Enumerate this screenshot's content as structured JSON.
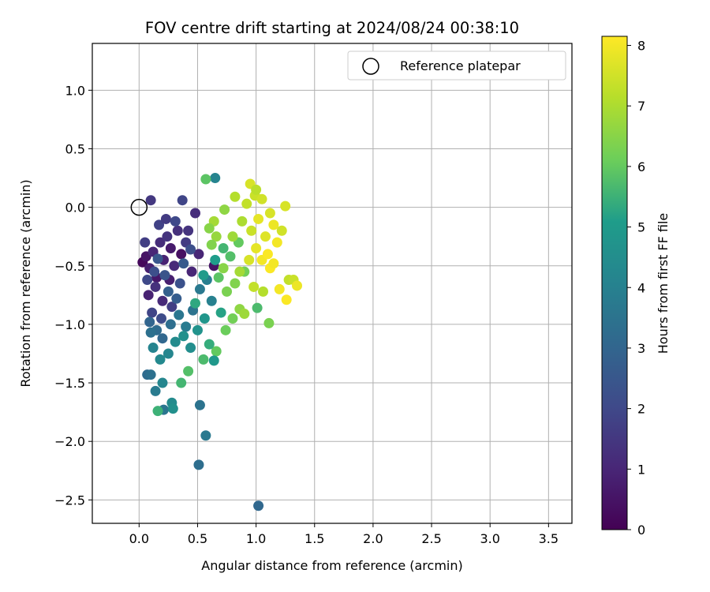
{
  "chart_data": {
    "type": "scatter",
    "title": "FOV centre drift starting at 2024/08/24 00:38:10",
    "xlabel": "Angular distance from reference (arcmin)",
    "ylabel": "Rotation from reference (arcmin)",
    "xlim": [
      -0.4,
      3.7
    ],
    "ylim": [
      -2.7,
      1.4
    ],
    "x_ticks": [
      0.0,
      0.5,
      1.0,
      1.5,
      2.0,
      2.5,
      3.0,
      3.5
    ],
    "x_tick_labels": [
      "0.0",
      "0.5",
      "1.0",
      "1.5",
      "2.0",
      "2.5",
      "3.0",
      "3.5"
    ],
    "y_ticks": [
      1.0,
      0.5,
      0.0,
      -0.5,
      -1.0,
      -1.5,
      -2.0,
      -2.5
    ],
    "y_tick_labels": [
      "1.0",
      "0.5",
      "0.0",
      "−0.5",
      "−1.0",
      "−1.5",
      "−2.0",
      "−2.5"
    ],
    "grid": true,
    "legend": {
      "position": "top-right",
      "entries": [
        "Reference platepar"
      ]
    },
    "reference_point": {
      "x": 0.0,
      "y": 0.0
    },
    "colorbar": {
      "label": "Hours from first FF file",
      "range": [
        0,
        8.15
      ],
      "ticks": [
        0,
        1,
        2,
        3,
        4,
        5,
        6,
        7,
        8
      ],
      "tick_labels": [
        "0",
        "1",
        "2",
        "3",
        "4",
        "5",
        "6",
        "7",
        "8"
      ],
      "colormap": "viridis"
    },
    "series": [
      {
        "points": [
          {
            "x": 0.03,
            "y": -0.47,
            "h": 0.2
          },
          {
            "x": 0.06,
            "y": -0.42,
            "h": 0.5
          },
          {
            "x": 0.09,
            "y": -0.52,
            "h": 0.8
          },
          {
            "x": 0.12,
            "y": -0.38,
            "h": 1.0
          },
          {
            "x": 0.15,
            "y": -0.6,
            "h": 0.6
          },
          {
            "x": 0.18,
            "y": -0.3,
            "h": 1.2
          },
          {
            "x": 0.21,
            "y": -0.45,
            "h": 0.9
          },
          {
            "x": 0.24,
            "y": -0.25,
            "h": 1.4
          },
          {
            "x": 0.27,
            "y": -0.35,
            "h": 0.7
          },
          {
            "x": 0.3,
            "y": -0.5,
            "h": 1.1
          },
          {
            "x": 0.33,
            "y": -0.2,
            "h": 1.3
          },
          {
            "x": 0.36,
            "y": -0.4,
            "h": 0.4
          },
          {
            "x": 0.4,
            "y": -0.3,
            "h": 1.6
          },
          {
            "x": 0.45,
            "y": -0.55,
            "h": 1.0
          },
          {
            "x": 0.48,
            "y": -0.05,
            "h": 1.2
          },
          {
            "x": 0.1,
            "y": 0.06,
            "h": 1.5
          },
          {
            "x": 0.37,
            "y": 0.06,
            "h": 1.9
          },
          {
            "x": 0.08,
            "y": -0.75,
            "h": 0.9
          },
          {
            "x": 0.14,
            "y": -0.68,
            "h": 1.3
          },
          {
            "x": 0.2,
            "y": -0.8,
            "h": 1.1
          },
          {
            "x": 0.26,
            "y": -0.62,
            "h": 0.8
          },
          {
            "x": 0.05,
            "y": -0.3,
            "h": 1.7
          },
          {
            "x": 0.17,
            "y": -0.15,
            "h": 1.8
          },
          {
            "x": 0.23,
            "y": -0.1,
            "h": 1.6
          },
          {
            "x": 0.31,
            "y": -0.12,
            "h": 2.0
          },
          {
            "x": 0.42,
            "y": -0.2,
            "h": 1.4
          },
          {
            "x": 0.51,
            "y": -0.4,
            "h": 1.0
          },
          {
            "x": 0.64,
            "y": -0.5,
            "h": 0.5
          },
          {
            "x": 0.11,
            "y": -0.9,
            "h": 1.9
          },
          {
            "x": 0.19,
            "y": -0.95,
            "h": 2.1
          },
          {
            "x": 0.28,
            "y": -0.85,
            "h": 1.7
          },
          {
            "x": 0.13,
            "y": -0.55,
            "h": 2.2
          },
          {
            "x": 0.22,
            "y": -0.58,
            "h": 2.4
          },
          {
            "x": 0.35,
            "y": -0.65,
            "h": 2.3
          },
          {
            "x": 0.07,
            "y": -0.62,
            "h": 2.0
          },
          {
            "x": 0.16,
            "y": -0.44,
            "h": 2.5
          },
          {
            "x": 0.38,
            "y": -0.48,
            "h": 2.6
          },
          {
            "x": 0.44,
            "y": -0.36,
            "h": 2.2
          },
          {
            "x": 0.25,
            "y": -0.72,
            "h": 2.8
          },
          {
            "x": 0.32,
            "y": -0.78,
            "h": 2.7
          },
          {
            "x": 0.09,
            "y": -0.98,
            "h": 3.0
          },
          {
            "x": 0.15,
            "y": -1.05,
            "h": 3.2
          },
          {
            "x": 0.1,
            "y": -1.07,
            "h": 3.4
          },
          {
            "x": 0.2,
            "y": -1.12,
            "h": 3.1
          },
          {
            "x": 0.27,
            "y": -1.0,
            "h": 3.3
          },
          {
            "x": 0.34,
            "y": -0.92,
            "h": 3.6
          },
          {
            "x": 0.4,
            "y": -1.02,
            "h": 3.8
          },
          {
            "x": 0.46,
            "y": -0.88,
            "h": 3.5
          },
          {
            "x": 0.52,
            "y": -0.7,
            "h": 3.7
          },
          {
            "x": 0.58,
            "y": -0.62,
            "h": 3.9
          },
          {
            "x": 0.62,
            "y": -0.8,
            "h": 4.0
          },
          {
            "x": 0.12,
            "y": -1.2,
            "h": 4.1
          },
          {
            "x": 0.18,
            "y": -1.3,
            "h": 4.3
          },
          {
            "x": 0.25,
            "y": -1.25,
            "h": 4.2
          },
          {
            "x": 0.31,
            "y": -1.15,
            "h": 4.4
          },
          {
            "x": 0.38,
            "y": -1.1,
            "h": 4.6
          },
          {
            "x": 0.44,
            "y": -1.2,
            "h": 4.5
          },
          {
            "x": 0.5,
            "y": -1.05,
            "h": 4.7
          },
          {
            "x": 0.56,
            "y": -0.95,
            "h": 4.8
          },
          {
            "x": 0.07,
            "y": -1.43,
            "h": 3.2
          },
          {
            "x": 0.1,
            "y": -1.43,
            "h": 3.4
          },
          {
            "x": 0.14,
            "y": -1.57,
            "h": 3.8
          },
          {
            "x": 0.2,
            "y": -1.5,
            "h": 4.2
          },
          {
            "x": 0.21,
            "y": -1.73,
            "h": 3.6
          },
          {
            "x": 0.28,
            "y": -1.67,
            "h": 4.4
          },
          {
            "x": 0.29,
            "y": -1.72,
            "h": 4.6
          },
          {
            "x": 0.52,
            "y": -1.69,
            "h": 3.5
          },
          {
            "x": 0.57,
            "y": -1.95,
            "h": 3.7
          },
          {
            "x": 0.51,
            "y": -2.2,
            "h": 3.3
          },
          {
            "x": 1.02,
            "y": -2.55,
            "h": 3.1
          },
          {
            "x": 0.65,
            "y": 0.25,
            "h": 4.1
          },
          {
            "x": 0.57,
            "y": 0.24,
            "h": 5.9
          },
          {
            "x": 0.16,
            "y": -1.74,
            "h": 5.5
          },
          {
            "x": 0.36,
            "y": -1.5,
            "h": 5.6
          },
          {
            "x": 0.42,
            "y": -1.4,
            "h": 5.8
          },
          {
            "x": 0.55,
            "y": -1.3,
            "h": 5.7
          },
          {
            "x": 0.66,
            "y": -1.23,
            "h": 6.0
          },
          {
            "x": 0.74,
            "y": -1.05,
            "h": 6.1
          },
          {
            "x": 0.8,
            "y": -0.95,
            "h": 6.2
          },
          {
            "x": 0.6,
            "y": -1.17,
            "h": 5.4
          },
          {
            "x": 0.64,
            "y": -1.31,
            "h": 4.9
          },
          {
            "x": 0.7,
            "y": -0.9,
            "h": 5.2
          },
          {
            "x": 0.48,
            "y": -0.82,
            "h": 5.3
          },
          {
            "x": 0.55,
            "y": -0.58,
            "h": 5.0
          },
          {
            "x": 0.65,
            "y": -0.45,
            "h": 5.1
          },
          {
            "x": 0.72,
            "y": -0.35,
            "h": 5.6
          },
          {
            "x": 0.78,
            "y": -0.42,
            "h": 5.8
          },
          {
            "x": 0.85,
            "y": -0.3,
            "h": 6.0
          },
          {
            "x": 0.68,
            "y": -0.6,
            "h": 5.9
          },
          {
            "x": 0.75,
            "y": -0.72,
            "h": 6.3
          },
          {
            "x": 0.82,
            "y": -0.65,
            "h": 6.4
          },
          {
            "x": 0.9,
            "y": -0.55,
            "h": 6.2
          },
          {
            "x": 1.01,
            "y": -0.86,
            "h": 5.7
          },
          {
            "x": 1.11,
            "y": -0.99,
            "h": 6.3
          },
          {
            "x": 0.86,
            "y": -0.87,
            "h": 6.6
          },
          {
            "x": 0.9,
            "y": -0.91,
            "h": 6.8
          },
          {
            "x": 0.73,
            "y": -0.02,
            "h": 6.6
          },
          {
            "x": 0.64,
            "y": -0.12,
            "h": 6.9
          },
          {
            "x": 0.66,
            "y": -0.25,
            "h": 6.7
          },
          {
            "x": 0.6,
            "y": -0.18,
            "h": 6.5
          },
          {
            "x": 0.82,
            "y": 0.09,
            "h": 7.1
          },
          {
            "x": 0.92,
            "y": 0.03,
            "h": 7.3
          },
          {
            "x": 0.95,
            "y": 0.2,
            "h": 7.6
          },
          {
            "x": 0.99,
            "y": 0.1,
            "h": 7.4
          },
          {
            "x": 1.05,
            "y": 0.07,
            "h": 7.5
          },
          {
            "x": 1.0,
            "y": 0.15,
            "h": 7.2
          },
          {
            "x": 0.88,
            "y": -0.12,
            "h": 7.0
          },
          {
            "x": 0.96,
            "y": -0.2,
            "h": 7.4
          },
          {
            "x": 1.02,
            "y": -0.1,
            "h": 7.8
          },
          {
            "x": 1.08,
            "y": -0.25,
            "h": 7.7
          },
          {
            "x": 1.12,
            "y": -0.05,
            "h": 7.6
          },
          {
            "x": 1.15,
            "y": -0.15,
            "h": 7.9
          },
          {
            "x": 1.18,
            "y": -0.3,
            "h": 8.0
          },
          {
            "x": 1.22,
            "y": -0.2,
            "h": 7.5
          },
          {
            "x": 1.25,
            "y": 0.01,
            "h": 7.6
          },
          {
            "x": 1.28,
            "y": -0.62,
            "h": 7.3
          },
          {
            "x": 1.32,
            "y": -0.62,
            "h": 7.4
          },
          {
            "x": 1.35,
            "y": -0.67,
            "h": 7.9
          },
          {
            "x": 1.26,
            "y": -0.79,
            "h": 8.1
          },
          {
            "x": 1.2,
            "y": -0.7,
            "h": 8.0
          },
          {
            "x": 1.12,
            "y": -0.52,
            "h": 8.1
          },
          {
            "x": 1.05,
            "y": -0.45,
            "h": 8.0
          },
          {
            "x": 1.1,
            "y": -0.4,
            "h": 8.1
          },
          {
            "x": 1.15,
            "y": -0.48,
            "h": 8.0
          },
          {
            "x": 1.0,
            "y": -0.35,
            "h": 7.8
          },
          {
            "x": 0.94,
            "y": -0.45,
            "h": 7.6
          },
          {
            "x": 0.98,
            "y": -0.68,
            "h": 7.3
          },
          {
            "x": 1.06,
            "y": -0.72,
            "h": 7.1
          },
          {
            "x": 0.86,
            "y": -0.55,
            "h": 6.9
          },
          {
            "x": 0.8,
            "y": -0.25,
            "h": 6.8
          },
          {
            "x": 0.72,
            "y": -0.52,
            "h": 6.5
          },
          {
            "x": 0.62,
            "y": -0.32,
            "h": 6.4
          }
        ]
      }
    ]
  }
}
